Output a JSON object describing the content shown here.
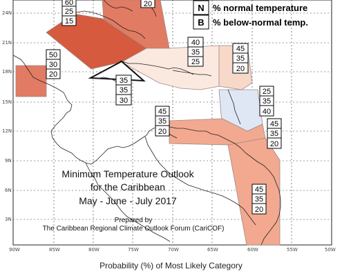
{
  "title": {
    "line1": "Minimum Temperature Outlook",
    "line2": "for the Caribbean",
    "line3": "May - June - July 2017"
  },
  "credit": {
    "line1": "Prepared by",
    "line2": "The Caribbean Regional Climate Outlook Forum (CariCOF)"
  },
  "legend": [
    {
      "letter": "N",
      "text": "% normal temperature"
    },
    {
      "letter": "B",
      "text": "% below-normal temp."
    }
  ],
  "caption": "Probability (%) of Most Likely Category",
  "axes": {
    "lat_labels": [
      "24N",
      "21N",
      "18N",
      "15N",
      "12N",
      "9N",
      "6N",
      "3N"
    ],
    "lon_labels": [
      "90W",
      "85W",
      "80W",
      "75W",
      "70W",
      "65W",
      "60W",
      "55W",
      "50W"
    ]
  },
  "colors": {
    "dark_red": "#d55a3e",
    "medium_red": "#e27b63",
    "light_salmon": "#f2a98f",
    "pale_peach": "#f8d8c8",
    "very_pale": "#fbe9e0",
    "light_blue": "#dfe7f5"
  },
  "regions": [
    {
      "id": "top-center",
      "values": [
        "20"
      ]
    },
    {
      "id": "top-left",
      "values": [
        "60",
        "25",
        "15"
      ]
    },
    {
      "id": "bahamas-west",
      "values": [
        "50",
        "30",
        "20"
      ]
    },
    {
      "id": "jamaica",
      "values": [
        "35",
        "35",
        "30"
      ]
    },
    {
      "id": "hispaniola",
      "values": [
        "40",
        "35",
        "25"
      ]
    },
    {
      "id": "leeward",
      "values": [
        "45",
        "35",
        "20"
      ]
    },
    {
      "id": "windward",
      "values": [
        "25",
        "35",
        "40"
      ]
    },
    {
      "id": "trinidad",
      "values": [
        "45",
        "35",
        "20"
      ]
    },
    {
      "id": "south-caribbean",
      "values": [
        "45",
        "35",
        "20"
      ]
    },
    {
      "id": "guianas",
      "values": [
        "45",
        "35",
        "20"
      ]
    }
  ]
}
